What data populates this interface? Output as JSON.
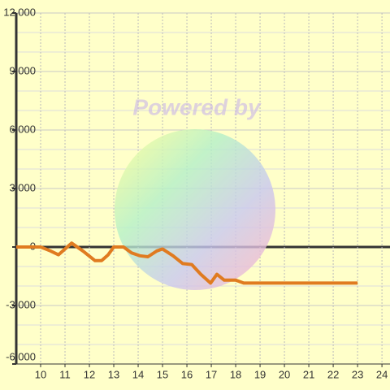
{
  "chart_data": {
    "type": "line",
    "watermark": "Powered by",
    "x": [
      9,
      10,
      10.4,
      10.73,
      11.27,
      11.73,
      12.23,
      12.5,
      12.77,
      13,
      13.4,
      13.73,
      14.07,
      14.4,
      14.77,
      15,
      15.43,
      15.83,
      16.2,
      16.57,
      16.97,
      17.23,
      17.53,
      18,
      18.33,
      23
    ],
    "series": [
      {
        "color": "#e07b20",
        "values": [
          0,
          0,
          -200,
          -400,
          200,
          -200,
          -700,
          -700,
          -400,
          0,
          0,
          -300,
          -450,
          -500,
          -200,
          -100,
          -450,
          -850,
          -900,
          -1400,
          -1850,
          -1400,
          -1700,
          -1700,
          -1850,
          -1850
        ]
      }
    ],
    "xlim": [
      9,
      24.33
    ],
    "xticks": [
      10,
      11,
      12,
      13,
      14,
      15,
      16,
      17,
      18,
      19,
      20,
      21,
      22,
      23,
      24
    ],
    "ylim": [
      -6000,
      12000
    ],
    "yticks": [
      {
        "value": -6000,
        "label": "-6,000"
      },
      {
        "value": -3000,
        "label": "-3,000"
      },
      0,
      {
        "value": 3000,
        "label": "3,000"
      },
      {
        "value": 6000,
        "label": "6,000"
      },
      {
        "value": 9000,
        "label": "9,000"
      },
      {
        "value": 12000,
        "label": "12,000"
      }
    ],
    "grid": true
  }
}
